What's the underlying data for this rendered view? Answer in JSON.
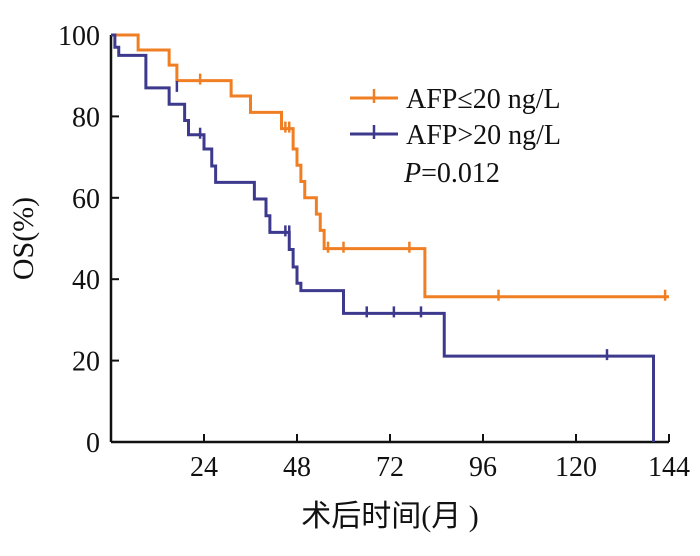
{
  "chart_data": {
    "type": "line",
    "subtype": "kaplan-meier",
    "xlabel": "术后时间(月 )",
    "ylabel": "OS(%)",
    "xlim": [
      0,
      144
    ],
    "ylim": [
      0,
      100
    ],
    "xticks": [
      "24",
      "48",
      "72",
      "96",
      "120",
      "144"
    ],
    "yticks": [
      "0",
      "20",
      "40",
      "60",
      "80",
      "100"
    ],
    "grid": false,
    "legend_position": "top-right",
    "p_value_label": "P",
    "p_value_text": "=0.012",
    "series": [
      {
        "name": "AFP≤20 ng/L",
        "color": "#F07F24",
        "steps": [
          [
            0,
            100
          ],
          [
            7,
            100
          ],
          [
            7,
            96.3
          ],
          [
            15,
            96.3
          ],
          [
            15,
            92.6
          ],
          [
            17,
            92.6
          ],
          [
            17,
            88.8
          ],
          [
            31,
            88.8
          ],
          [
            31,
            85
          ],
          [
            36,
            85
          ],
          [
            36,
            81
          ],
          [
            44,
            81
          ],
          [
            44,
            77
          ],
          [
            47,
            77
          ],
          [
            47,
            72
          ],
          [
            48,
            72
          ],
          [
            48,
            68
          ],
          [
            49,
            68
          ],
          [
            49,
            64
          ],
          [
            50,
            64
          ],
          [
            50,
            60
          ],
          [
            53,
            60
          ],
          [
            53,
            56
          ],
          [
            54,
            56
          ],
          [
            54,
            52
          ],
          [
            55,
            52
          ],
          [
            55,
            47.5
          ],
          [
            81,
            47.5
          ],
          [
            81,
            35.7
          ],
          [
            144,
            35.7
          ]
        ],
        "censor": [
          [
            23,
            88.8
          ],
          [
            45,
            77
          ],
          [
            46,
            77
          ],
          [
            56,
            47.5
          ],
          [
            60,
            47.5
          ],
          [
            77,
            47.5
          ],
          [
            100,
            35.7
          ],
          [
            143,
            35.7
          ]
        ]
      },
      {
        "name": "AFP>20 ng/L",
        "color": "#3D3A8E",
        "steps": [
          [
            0,
            100
          ],
          [
            1,
            100
          ],
          [
            1,
            97
          ],
          [
            2,
            97
          ],
          [
            2,
            95
          ],
          [
            9,
            95
          ],
          [
            9,
            87
          ],
          [
            15,
            87
          ],
          [
            15,
            83
          ],
          [
            19,
            83
          ],
          [
            19,
            79
          ],
          [
            20,
            79
          ],
          [
            20,
            75.5
          ],
          [
            24,
            75.5
          ],
          [
            24,
            72
          ],
          [
            26,
            72
          ],
          [
            26,
            67.8
          ],
          [
            27,
            67.8
          ],
          [
            27,
            63.8
          ],
          [
            37,
            63.8
          ],
          [
            37,
            59.7
          ],
          [
            40,
            59.7
          ],
          [
            40,
            55.6
          ],
          [
            41,
            55.6
          ],
          [
            41,
            51.5
          ],
          [
            46,
            51.5
          ],
          [
            46,
            47.3
          ],
          [
            47,
            47.3
          ],
          [
            47,
            43
          ],
          [
            48,
            43
          ],
          [
            48,
            39
          ],
          [
            49,
            39
          ],
          [
            49,
            37.2
          ],
          [
            60,
            37.2
          ],
          [
            60,
            31.6
          ],
          [
            86,
            31.6
          ],
          [
            86,
            21.1
          ],
          [
            140,
            21.1
          ],
          [
            140,
            0
          ]
        ],
        "censor": [
          [
            17,
            87
          ],
          [
            23,
            75.5
          ],
          [
            45,
            51.5
          ],
          [
            46,
            51.5
          ],
          [
            66,
            31.6
          ],
          [
            73,
            31.6
          ],
          [
            80,
            31.6
          ],
          [
            128,
            21.1
          ]
        ]
      }
    ]
  }
}
